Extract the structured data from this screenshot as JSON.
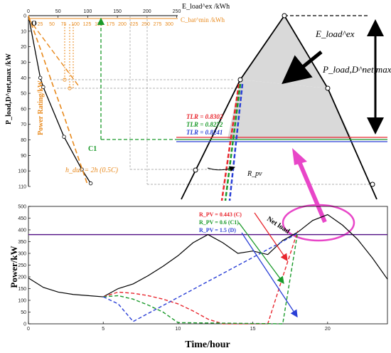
{
  "chart_data": [
    {
      "type": "line",
      "panel": "top",
      "title": "",
      "ylabel": "P_load,D^net,max /kW",
      "ylim": [
        0,
        110
      ],
      "y_reversed": true,
      "y_ticks": [
        "0",
        "10",
        "20",
        "30",
        "40",
        "50",
        "60",
        "70",
        "80",
        "90",
        "100",
        "110"
      ],
      "x_top_ticks_black": [
        "0",
        "50",
        "100",
        "150",
        "200",
        "250"
      ],
      "x_top_label_black": "E_load^ex /kWh",
      "x_top_ticks_orange": [
        "25",
        "50",
        "75",
        "100",
        "125",
        "150",
        "175",
        "200",
        "225",
        "250",
        "275",
        "300"
      ],
      "x_top_label_orange": "C_bat^min /kWh",
      "origin_label": "O",
      "power_rating_label": "Power Rating/kW",
      "c1_label": "C1",
      "hdur_label": "h_dur = 2h (0.5C)",
      "tlr_labels": [
        {
          "text": "TLR = 0.8302",
          "color": "#e8262e"
        },
        {
          "text": "TLR = 0.8272",
          "color": "#1a9a2a"
        },
        {
          "text": "TLR = 0.8241",
          "color": "#2a3fd6"
        }
      ],
      "eload_label": "E_load^ex",
      "pnet_label": "P_load,D^net,max",
      "rpv_label": "R_pv",
      "curve_black": {
        "x_kwh": [
          0,
          20,
          25,
          60,
          90,
          105
        ],
        "y_kw": [
          0,
          40,
          46,
          78,
          99,
          108
        ]
      },
      "orange_dashed": {
        "x_kwh": [
          0,
          25,
          50,
          75,
          100,
          125
        ],
        "y_kw": [
          0,
          21,
          43,
          64,
          86,
          108
        ]
      }
    },
    {
      "type": "line",
      "panel": "bottom",
      "xlabel": "Time/hour",
      "ylabel": "Power/kW",
      "xlim": [
        0,
        24
      ],
      "ylim": [
        0,
        500
      ],
      "x_ticks": [
        "0",
        "5",
        "10",
        "15",
        "20"
      ],
      "y_ticks": [
        "0",
        "50",
        "100",
        "150",
        "200",
        "250",
        "300",
        "350",
        "400",
        "450",
        "500"
      ],
      "threshold_kw": 380,
      "annotations": [
        {
          "text": "R_PV = 0.443 (C)",
          "color": "#e8262e"
        },
        {
          "text": "R_PV = 0.6 (C1)",
          "color": "#1a9a2a"
        },
        {
          "text": "R_PV = 1.5 (D)",
          "color": "#2a3fd6"
        },
        {
          "text": "Net load",
          "color": "#000000"
        }
      ],
      "series": [
        {
          "color": "#000000",
          "x": [
            0,
            1,
            2,
            3,
            4,
            5,
            6,
            7,
            8,
            9,
            10,
            11,
            12,
            13,
            14,
            15,
            16,
            17,
            18,
            19,
            20,
            21,
            22,
            23,
            24
          ],
          "values": [
            195,
            155,
            135,
            125,
            120,
            115,
            150,
            170,
            205,
            245,
            290,
            345,
            380,
            345,
            300,
            310,
            295,
            355,
            390,
            440,
            465,
            420,
            360,
            280,
            190
          ]
        },
        {
          "name": "R_PV = 0.443 (C)",
          "color": "#e8262e",
          "x": [
            5,
            6,
            7,
            8,
            9,
            10,
            11,
            12,
            13,
            14,
            15,
            16,
            17,
            18
          ],
          "values": [
            115,
            135,
            130,
            120,
            105,
            85,
            55,
            20,
            0,
            0,
            0,
            0,
            200,
            395
          ]
        },
        {
          "name": "R_PV = 0.6 (C1)",
          "color": "#1a9a2a",
          "x": [
            5,
            6,
            7,
            8,
            9,
            10,
            17,
            18
          ],
          "values": [
            115,
            120,
            105,
            80,
            50,
            5,
            0,
            390
          ]
        },
        {
          "name": "R_PV = 1.5 (D)",
          "color": "#2a3fd6",
          "x": [
            5,
            6,
            7,
            18
          ],
          "values": [
            115,
            85,
            10,
            385
          ]
        }
      ]
    }
  ]
}
